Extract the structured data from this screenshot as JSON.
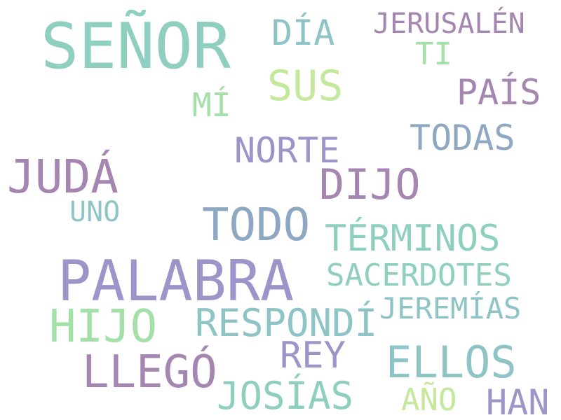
{
  "palette": {
    "teal": "#8ecfc0",
    "lavender": "#9b95c9",
    "mauve": "#a486b0",
    "lime": "#c4e89c",
    "mint": "#a5dfa8",
    "slate": "#8fa8c2",
    "cyan": "#8ec4c6"
  },
  "words": [
    {
      "text": "SEÑOR",
      "color": "#8ecfc0"
    },
    {
      "text": "DÍA",
      "color": "#8ec4c6"
    },
    {
      "text": "JERUSALÉN",
      "color": "#a486b0"
    },
    {
      "text": "TI",
      "color": "#a5dfa8"
    },
    {
      "text": "SUS",
      "color": "#c4e89c"
    },
    {
      "text": "PAÍS",
      "color": "#a486b0"
    },
    {
      "text": "MÍ",
      "color": "#a5dfa8"
    },
    {
      "text": "TODAS",
      "color": "#8fa8c2"
    },
    {
      "text": "NORTE",
      "color": "#9b95c9"
    },
    {
      "text": "JUDÁ",
      "color": "#a486b0"
    },
    {
      "text": "DIJO",
      "color": "#a486b0"
    },
    {
      "text": "UNO",
      "color": "#8ec4c6"
    },
    {
      "text": "TODO",
      "color": "#8fa8c2"
    },
    {
      "text": "TÉRMINOS",
      "color": "#8ecfc0"
    },
    {
      "text": "PALABRA",
      "color": "#9b95c9"
    },
    {
      "text": "SACERDOTES",
      "color": "#8ecfc0"
    },
    {
      "text": "JEREMÍAS",
      "color": "#8ec4c6"
    },
    {
      "text": "HIJO",
      "color": "#a5dfa8"
    },
    {
      "text": "RESPONDÍ",
      "color": "#8ec4c6"
    },
    {
      "text": "REY",
      "color": "#9b95c9"
    },
    {
      "text": "ELLOS",
      "color": "#8ec4c6"
    },
    {
      "text": "LLEGÓ",
      "color": "#a486b0"
    },
    {
      "text": "JOSÍAS",
      "color": "#8ecfc0"
    },
    {
      "text": "AÑO",
      "color": "#c4e89c"
    },
    {
      "text": "HAN",
      "color": "#9b95c9"
    }
  ]
}
